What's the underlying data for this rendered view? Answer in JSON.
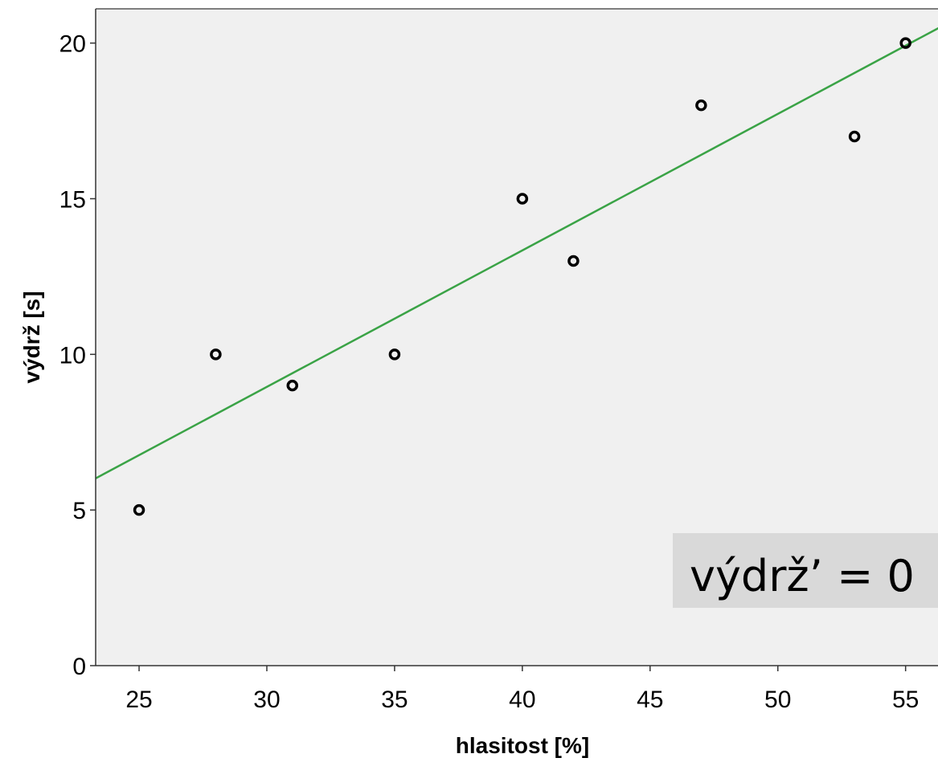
{
  "chart_data": {
    "type": "scatter",
    "xlabel": "hlasitost [%]",
    "ylabel": "výdrž [s]",
    "xlim": [
      23.3,
      56.3
    ],
    "ylim": [
      0,
      21.1
    ],
    "xticks": [
      25,
      30,
      35,
      40,
      45,
      50,
      55
    ],
    "yticks": [
      0,
      5,
      10,
      15,
      20
    ],
    "grid": false,
    "points": [
      {
        "x": 25,
        "y": 5
      },
      {
        "x": 28,
        "y": 10
      },
      {
        "x": 31,
        "y": 9
      },
      {
        "x": 35,
        "y": 10
      },
      {
        "x": 40,
        "y": 15
      },
      {
        "x": 42,
        "y": 13
      },
      {
        "x": 47,
        "y": 18
      },
      {
        "x": 53,
        "y": 17
      },
      {
        "x": 55,
        "y": 20
      }
    ],
    "fit_line": {
      "slope": 0.4385,
      "intercept": -4.2,
      "color": "#3aa346"
    },
    "annotation": "výdrž’ = 0",
    "colors": {
      "plot_background": "#f0f0f0",
      "annotation_background": "#d9d9d9",
      "marker": "#000000"
    }
  }
}
